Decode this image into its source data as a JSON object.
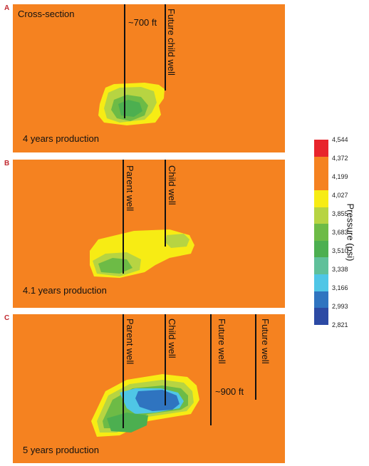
{
  "panels": [
    {
      "letter": "A",
      "labels": {
        "cross_section": "Cross-section",
        "spacing": "~700 ft",
        "future_child_well": "Future child well",
        "production": "4 years production"
      }
    },
    {
      "letter": "B",
      "labels": {
        "parent_well": "Parent well",
        "child_well": "Child well",
        "production": "4.1 years production"
      }
    },
    {
      "letter": "C",
      "labels": {
        "parent_well": "Parent well",
        "child_well": "Child well",
        "future_well_1": "Future well",
        "future_well_2": "Future well",
        "spacing": "~900 ft",
        "production": "5 years production"
      }
    }
  ],
  "legend": {
    "title": "Pressure (psi)",
    "ticks": [
      "4,544",
      "4,372",
      "4,199",
      "4,027",
      "3,855",
      "3,683",
      "3,510",
      "3,338",
      "3,166",
      "2,993",
      "2,821"
    ],
    "bins": [
      {
        "color": "#e8242b"
      },
      {
        "color": "#f58220"
      },
      {
        "color": "#f58220"
      },
      {
        "color": "#f7ec14"
      },
      {
        "color": "#b7d442"
      },
      {
        "color": "#6dbb46"
      },
      {
        "color": "#4caf50"
      },
      {
        "color": "#5fc09a"
      },
      {
        "color": "#4fc6e6"
      },
      {
        "color": "#2f74c0"
      },
      {
        "color": "#2c4aa4"
      }
    ]
  },
  "colors": {
    "background": "#f58220",
    "low_pressure_1": "#f7ec14",
    "low_pressure_2": "#b7d442",
    "low_pressure_3": "#6dbb46",
    "low_pressure_4": "#4caf50",
    "low_pressure_5": "#4fc6e6",
    "low_pressure_6": "#2f74c0"
  }
}
